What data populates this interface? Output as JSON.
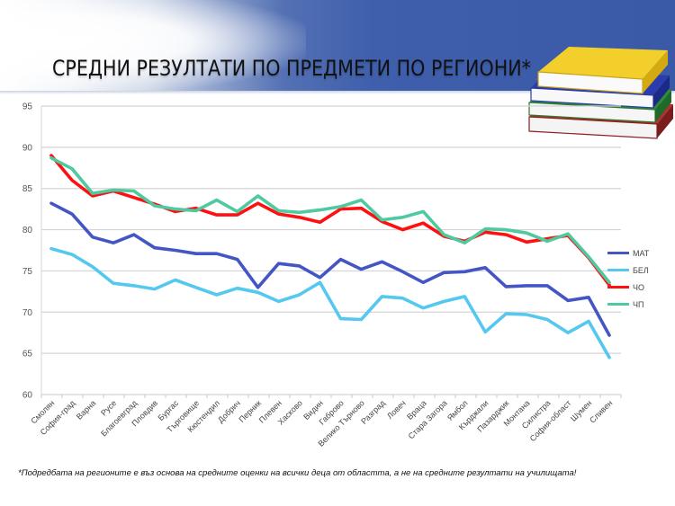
{
  "slide": {
    "title": "СРЕДНИ РЕЗУЛТАТИ ПО ПРЕДМЕТИ ПО РЕГИОНИ*",
    "footnote": "*Подредбата на регионите е въз основа на средните оценки на всички деца от областта, а не на средните резултати на училищата!",
    "decoration": "books-stack-icon"
  },
  "colors": {
    "МАТ": "#4455c4",
    "БЕЛ": "#55c8f0",
    "ЧО": "#ff1010",
    "ЧП": "#4ec9a0"
  },
  "chart_data": {
    "type": "line",
    "title": "СРЕДНИ РЕЗУЛТАТИ ПО ПРЕДМЕТИ ПО РЕГИОНИ*",
    "xlabel": "",
    "ylabel": "",
    "ylim": [
      60,
      95
    ],
    "yticks": [
      60,
      65,
      70,
      75,
      80,
      85,
      90,
      95
    ],
    "grid": true,
    "legend_position": "right",
    "categories": [
      "Смолян",
      "София-град",
      "Варна",
      "Русе",
      "Благоевград",
      "Пловдив",
      "Бургас",
      "Търговище",
      "Кюстендил",
      "Добрич",
      "Перник",
      "Плевен",
      "Хасково",
      "Видин",
      "Габрово",
      "Велико Търново",
      "Разград",
      "Ловеч",
      "Враца",
      "Стара Загора",
      "Ямбол",
      "Кърджали",
      "Пазарджик",
      "Монтана",
      "Силистра",
      "София-област",
      "Шумен",
      "Сливен"
    ],
    "series": [
      {
        "name": "МАТ",
        "values": [
          83.2,
          81.9,
          79.1,
          78.4,
          79.4,
          77.8,
          77.5,
          77.1,
          77.1,
          76.4,
          73.0,
          75.9,
          75.6,
          74.2,
          76.4,
          75.2,
          76.1,
          74.9,
          73.6,
          74.8,
          74.9,
          75.4,
          73.1,
          73.2,
          73.2,
          71.4,
          71.8,
          67.2
        ]
      },
      {
        "name": "БЕЛ",
        "values": [
          77.7,
          77.0,
          75.5,
          73.5,
          73.2,
          72.8,
          73.9,
          73.0,
          72.1,
          72.9,
          72.4,
          71.3,
          72.1,
          73.6,
          69.2,
          69.1,
          71.9,
          71.7,
          70.5,
          71.3,
          71.9,
          67.6,
          69.8,
          69.7,
          69.1,
          67.5,
          68.9,
          64.5
        ]
      },
      {
        "name": "ЧО",
        "values": [
          89.0,
          86.0,
          84.1,
          84.7,
          83.9,
          83.1,
          82.2,
          82.6,
          81.8,
          81.8,
          83.2,
          81.9,
          81.5,
          80.9,
          82.5,
          82.6,
          81.0,
          80.0,
          80.8,
          79.2,
          78.6,
          79.7,
          79.4,
          78.5,
          78.9,
          79.3,
          76.6,
          73.3
        ]
      },
      {
        "name": "ЧП",
        "values": [
          88.7,
          87.4,
          84.4,
          84.8,
          84.7,
          82.9,
          82.5,
          82.3,
          83.6,
          82.2,
          84.1,
          82.3,
          82.1,
          82.4,
          82.8,
          83.6,
          81.2,
          81.5,
          82.2,
          79.4,
          78.4,
          80.1,
          80.0,
          79.6,
          78.6,
          79.5,
          76.7,
          73.6
        ]
      }
    ]
  }
}
